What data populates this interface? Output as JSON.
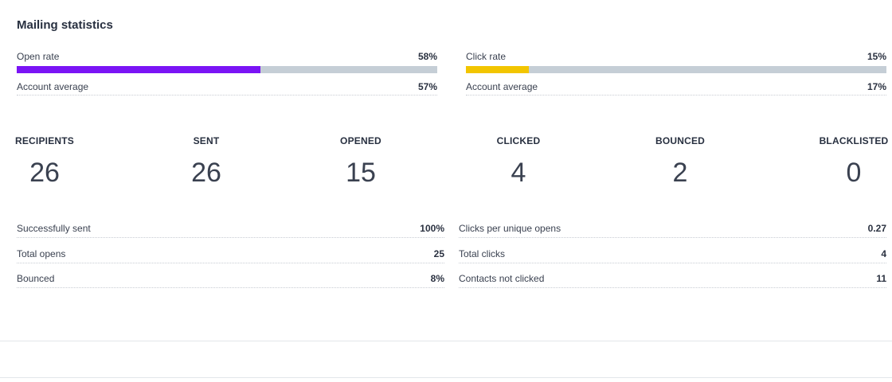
{
  "title": "Mailing statistics",
  "colors": {
    "open_bar": "#7a14f5",
    "click_bar": "#f2c500",
    "track": "#c5ced6"
  },
  "open_rate": {
    "label": "Open rate",
    "value": "58%",
    "fill_fraction": 0.58,
    "avg_label": "Account average",
    "avg_value": "57%"
  },
  "click_rate": {
    "label": "Click rate",
    "value": "15%",
    "fill_fraction": 0.15,
    "avg_label": "Account average",
    "avg_value": "17%"
  },
  "stats": [
    {
      "label": "RECIPIENTS",
      "value": "26"
    },
    {
      "label": "SENT",
      "value": "26"
    },
    {
      "label": "OPENED",
      "value": "15"
    },
    {
      "label": "CLICKED",
      "value": "4"
    },
    {
      "label": "BOUNCED",
      "value": "2"
    },
    {
      "label": "BLACKLISTED",
      "value": "0"
    }
  ],
  "details_left": [
    {
      "label": "Successfully sent",
      "value": "100%"
    },
    {
      "label": "Total opens",
      "value": "25"
    },
    {
      "label": "Bounced",
      "value": "8%"
    }
  ],
  "details_right": [
    {
      "label": "Clicks per unique opens",
      "value": "0.27"
    },
    {
      "label": "Total clicks",
      "value": "4"
    },
    {
      "label": "Contacts not clicked",
      "value": "11"
    }
  ]
}
